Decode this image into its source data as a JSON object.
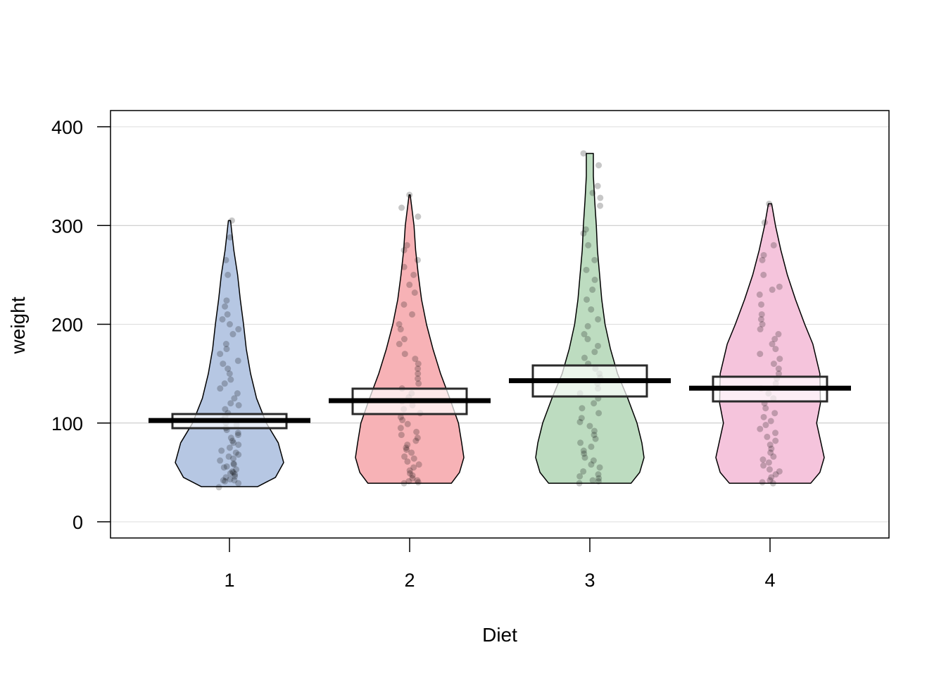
{
  "chart_data": {
    "type": "pirateplot",
    "title": "",
    "xlabel": "Diet",
    "ylabel": "weight",
    "ylim": [
      0,
      400
    ],
    "yticks": [
      0,
      100,
      200,
      300,
      400
    ],
    "grid": true,
    "categories": [
      "1",
      "2",
      "3",
      "4"
    ],
    "colors": [
      "#b6c7e3",
      "#f7b2b6",
      "#bddcc0",
      "#f5c4dc"
    ],
    "series": [
      {
        "name": "1",
        "mean": 102.6,
        "hdi": [
          94.8,
          109.1
        ],
        "range": [
          35,
          305
        ],
        "density": [
          [
            35.6,
            0.52
          ],
          [
            45,
            0.85
          ],
          [
            60,
            1.0
          ],
          [
            80,
            0.9
          ],
          [
            100,
            0.68
          ],
          [
            125,
            0.5
          ],
          [
            150,
            0.39
          ],
          [
            175,
            0.31
          ],
          [
            200,
            0.26
          ],
          [
            225,
            0.2
          ],
          [
            250,
            0.15
          ],
          [
            275,
            0.08
          ],
          [
            305,
            0.02
          ]
        ],
        "points": [
          35,
          39,
          41,
          42,
          42,
          43,
          45,
          46,
          48,
          49,
          50,
          51,
          53,
          55,
          56,
          58,
          59,
          62,
          64,
          66,
          68,
          70,
          72,
          75,
          78,
          80,
          82,
          85,
          88,
          90,
          93,
          95,
          98,
          100,
          103,
          106,
          110,
          114,
          118,
          120,
          125,
          130,
          135,
          140,
          144,
          150,
          155,
          160,
          163,
          170,
          175,
          180,
          190,
          195,
          200,
          205,
          210,
          218,
          224,
          250,
          265,
          288,
          305
        ]
      },
      {
        "name": "2",
        "mean": 122.6,
        "hdi": [
          109.1,
          134.8
        ],
        "range": [
          39,
          331
        ],
        "density": [
          [
            39,
            0.77
          ],
          [
            50,
            0.92
          ],
          [
            65,
            1.0
          ],
          [
            80,
            0.96
          ],
          [
            100,
            0.9
          ],
          [
            125,
            0.74
          ],
          [
            150,
            0.57
          ],
          [
            175,
            0.43
          ],
          [
            200,
            0.31
          ],
          [
            225,
            0.22
          ],
          [
            250,
            0.16
          ],
          [
            275,
            0.11
          ],
          [
            300,
            0.08
          ],
          [
            331,
            0.01
          ]
        ],
        "points": [
          39,
          40,
          41,
          42,
          44,
          47,
          49,
          52,
          55,
          58,
          61,
          64,
          66,
          70,
          73,
          75,
          78,
          82,
          85,
          88,
          91,
          95,
          99,
          103,
          106,
          110,
          114,
          118,
          122,
          126,
          130,
          135,
          140,
          145,
          150,
          155,
          160,
          165,
          170,
          180,
          185,
          195,
          200,
          210,
          220,
          232,
          240,
          250,
          258,
          265,
          275,
          280,
          309,
          318,
          331
        ]
      },
      {
        "name": "3",
        "mean": 142.9,
        "hdi": [
          126.9,
          158.3
        ],
        "range": [
          39,
          373
        ],
        "density": [
          [
            39,
            0.76
          ],
          [
            50,
            0.92
          ],
          [
            65,
            1.0
          ],
          [
            80,
            0.96
          ],
          [
            100,
            0.87
          ],
          [
            125,
            0.7
          ],
          [
            150,
            0.51
          ],
          [
            175,
            0.38
          ],
          [
            200,
            0.28
          ],
          [
            225,
            0.22
          ],
          [
            250,
            0.18
          ],
          [
            275,
            0.14
          ],
          [
            300,
            0.12
          ],
          [
            325,
            0.09
          ],
          [
            350,
            0.065
          ],
          [
            373,
            0.065
          ]
        ],
        "points": [
          39,
          41,
          42,
          44,
          46,
          48,
          51,
          55,
          58,
          62,
          65,
          69,
          72,
          76,
          80,
          84,
          88,
          92,
          97,
          101,
          105,
          110,
          115,
          120,
          125,
          130,
          135,
          140,
          146,
          150,
          155,
          160,
          166,
          172,
          178,
          185,
          190,
          198,
          205,
          215,
          225,
          235,
          245,
          255,
          265,
          280,
          292,
          296,
          320,
          328,
          333,
          340,
          361,
          373
        ]
      },
      {
        "name": "4",
        "mean": 135.3,
        "hdi": [
          121.9,
          146.9
        ],
        "range": [
          39,
          322
        ],
        "density": [
          [
            39,
            0.75
          ],
          [
            50,
            0.92
          ],
          [
            65,
            1.0
          ],
          [
            80,
            0.94
          ],
          [
            100,
            0.86
          ],
          [
            120,
            0.93
          ],
          [
            150,
            0.92
          ],
          [
            180,
            0.79
          ],
          [
            200,
            0.64
          ],
          [
            225,
            0.47
          ],
          [
            250,
            0.32
          ],
          [
            275,
            0.2
          ],
          [
            300,
            0.1
          ],
          [
            322,
            0.03
          ]
        ],
        "points": [
          39,
          40,
          42,
          45,
          48,
          51,
          53,
          57,
          60,
          63,
          66,
          70,
          74,
          78,
          82,
          86,
          90,
          94,
          98,
          102,
          106,
          110,
          115,
          120,
          125,
          130,
          135,
          140,
          145,
          150,
          155,
          160,
          165,
          170,
          175,
          180,
          185,
          190,
          195,
          200,
          205,
          210,
          220,
          230,
          235,
          238,
          250,
          265,
          270,
          280,
          303,
          322
        ]
      }
    ]
  }
}
